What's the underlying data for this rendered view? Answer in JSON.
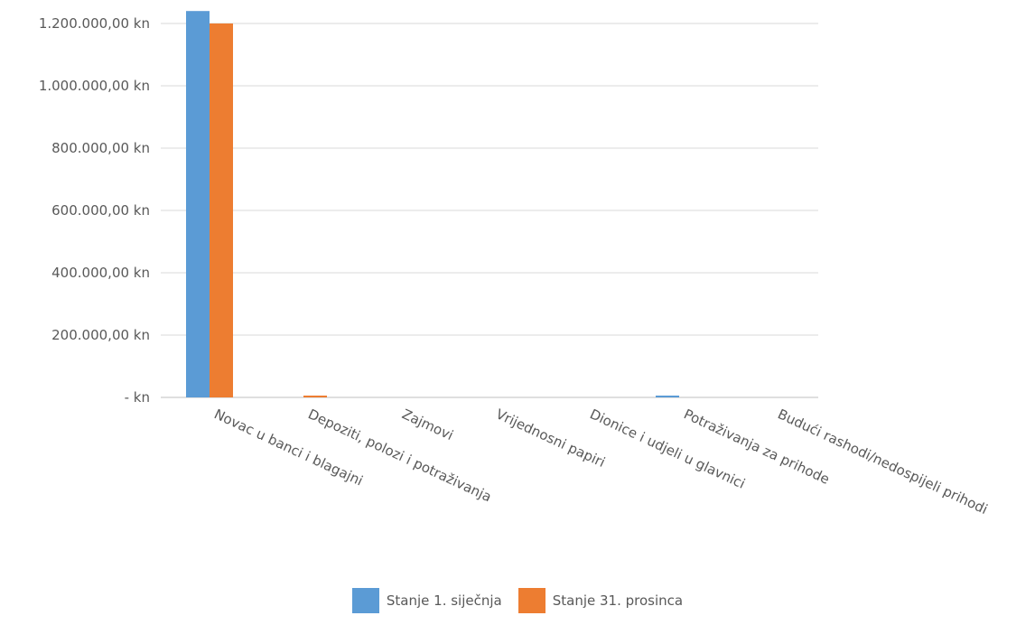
{
  "chart_data": {
    "type": "bar",
    "categories": [
      "Novac u banci i blagajni",
      "Depoziti, polozi i potraživanja",
      "Zajmovi",
      "Vrijednosni papiri",
      "Dionice i udjeli u glavnici",
      "Potraživanja za prihode",
      "Budući rashodi/nedospijeli prihodi"
    ],
    "series": [
      {
        "name": "Stanje 1. siječnja",
        "color": "#5B9BD5",
        "values": [
          1240000,
          0,
          0,
          0,
          0,
          5000,
          0
        ]
      },
      {
        "name": "Stanje 31. prosinca",
        "color": "#ED7D31",
        "values": [
          1200000,
          5000,
          0,
          0,
          0,
          0,
          0
        ]
      }
    ],
    "ylim": [
      0,
      1200000
    ],
    "yticks": [
      0,
      200000,
      400000,
      600000,
      800000,
      1000000,
      1200000
    ],
    "ytick_labels": [
      "-  kn",
      "200.000,00 kn",
      "400.000,00 kn",
      "600.000,00 kn",
      "800.000,00 kn",
      "1.000.000,00 kn",
      "1.200.000,00 kn"
    ],
    "grid": true,
    "legend_position": "bottom"
  }
}
